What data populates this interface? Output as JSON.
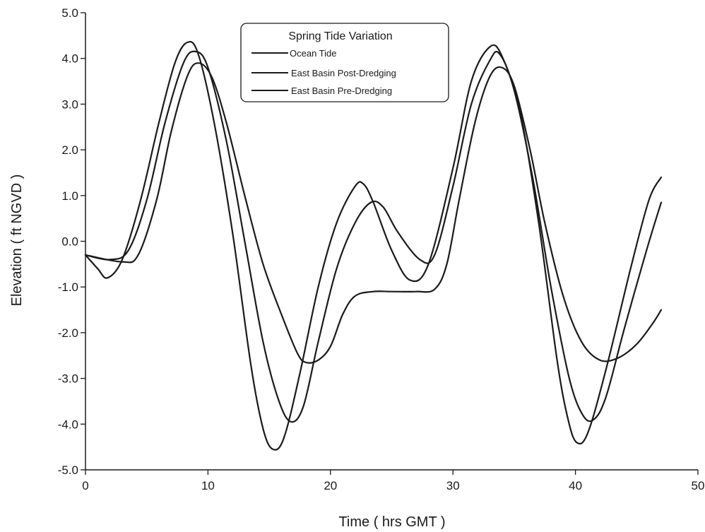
{
  "chart_data": {
    "type": "line",
    "title": "",
    "xlabel": "Time ( hrs GMT )",
    "ylabel": "Elevation ( ft NGVD )",
    "xlim": [
      0,
      50
    ],
    "ylim": [
      -5,
      5
    ],
    "x_ticks": [
      0,
      10,
      20,
      30,
      40,
      50
    ],
    "x_tick_labels": [
      "0",
      "10",
      "20",
      "30",
      "40",
      "50"
    ],
    "y_ticks": [
      5,
      4,
      3,
      2,
      1,
      0,
      -1,
      -2,
      -3,
      -4,
      -5
    ],
    "y_tick_labels": [
      "5.0",
      "4.0",
      "3.0",
      "2.0",
      "1.0",
      "0.0",
      "-1.0",
      "-2.0",
      "-3.0",
      "-4.0",
      "-5.0"
    ],
    "grid": false,
    "legend": {
      "title": "Spring Tide Variation",
      "position": "top-center"
    },
    "series": [
      {
        "name": "Ocean Tide",
        "color": "#1a1a1a",
        "points": [
          [
            0,
            -0.3
          ],
          [
            1,
            -0.6
          ],
          [
            1.8,
            -0.8
          ],
          [
            3,
            -0.4
          ],
          [
            4.5,
            0.9
          ],
          [
            6,
            2.6
          ],
          [
            7.3,
            3.9
          ],
          [
            8.3,
            4.35
          ],
          [
            9.2,
            4.1
          ],
          [
            10.5,
            2.6
          ],
          [
            12,
            0.2
          ],
          [
            13.5,
            -2.7
          ],
          [
            14.5,
            -4.1
          ],
          [
            15.3,
            -4.55
          ],
          [
            16.2,
            -4.3
          ],
          [
            17.5,
            -2.9
          ],
          [
            19,
            -1.0
          ],
          [
            20.5,
            0.4
          ],
          [
            22,
            1.2
          ],
          [
            22.7,
            1.25
          ],
          [
            23.5,
            0.85
          ],
          [
            25,
            -0.2
          ],
          [
            26.5,
            -0.85
          ],
          [
            28,
            -0.5
          ],
          [
            30,
            1.6
          ],
          [
            31.5,
            3.5
          ],
          [
            33,
            4.25
          ],
          [
            34,
            4.05
          ],
          [
            35.5,
            2.8
          ],
          [
            37,
            0.4
          ],
          [
            38.5,
            -2.6
          ],
          [
            39.4,
            -3.9
          ],
          [
            40.1,
            -4.4
          ],
          [
            41,
            -4.2
          ],
          [
            42.5,
            -2.8
          ],
          [
            44.5,
            -0.6
          ],
          [
            46,
            0.9
          ],
          [
            47,
            1.4
          ]
        ]
      },
      {
        "name": "East Basin Post-Dredging",
        "color": "#1a1a1a",
        "points": [
          [
            0,
            -0.3
          ],
          [
            2,
            -0.4
          ],
          [
            3.5,
            -0.2
          ],
          [
            5,
            0.9
          ],
          [
            6.5,
            2.6
          ],
          [
            8,
            3.9
          ],
          [
            9,
            4.15
          ],
          [
            10,
            3.8
          ],
          [
            11.5,
            2.2
          ],
          [
            13,
            0.0
          ],
          [
            14.5,
            -2.2
          ],
          [
            15.8,
            -3.5
          ],
          [
            16.8,
            -3.95
          ],
          [
            17.8,
            -3.6
          ],
          [
            19,
            -2.2
          ],
          [
            20.5,
            -0.6
          ],
          [
            22,
            0.4
          ],
          [
            23.3,
            0.85
          ],
          [
            24.3,
            0.75
          ],
          [
            25.5,
            0.2
          ],
          [
            27.3,
            -0.4
          ],
          [
            28.5,
            -0.3
          ],
          [
            30,
            1.2
          ],
          [
            31.5,
            3.0
          ],
          [
            33,
            3.95
          ],
          [
            33.8,
            4.1
          ],
          [
            35,
            3.3
          ],
          [
            36.5,
            1.4
          ],
          [
            38,
            -1.0
          ],
          [
            39.5,
            -3.0
          ],
          [
            40.6,
            -3.8
          ],
          [
            41.5,
            -3.9
          ],
          [
            42.5,
            -3.4
          ],
          [
            44,
            -1.9
          ],
          [
            45.8,
            -0.2
          ],
          [
            47,
            0.85
          ]
        ]
      },
      {
        "name": "East Basin Pre-Dredging",
        "color": "#1a1a1a",
        "points": [
          [
            0,
            -0.3
          ],
          [
            3,
            -0.45
          ],
          [
            4.3,
            -0.3
          ],
          [
            5.8,
            0.9
          ],
          [
            7,
            2.4
          ],
          [
            8.3,
            3.6
          ],
          [
            9.2,
            3.9
          ],
          [
            10.3,
            3.6
          ],
          [
            11.5,
            2.6
          ],
          [
            13,
            1.0
          ],
          [
            14.5,
            -0.5
          ],
          [
            16,
            -1.6
          ],
          [
            17.3,
            -2.45
          ],
          [
            18,
            -2.65
          ],
          [
            19,
            -2.6
          ],
          [
            20,
            -2.3
          ],
          [
            21,
            -1.6
          ],
          [
            22,
            -1.2
          ],
          [
            23.5,
            -1.1
          ],
          [
            25,
            -1.1
          ],
          [
            27,
            -1.1
          ],
          [
            28.5,
            -1.05
          ],
          [
            29.5,
            -0.5
          ],
          [
            30.5,
            0.9
          ],
          [
            31.8,
            2.6
          ],
          [
            33,
            3.6
          ],
          [
            34,
            3.8
          ],
          [
            35,
            3.4
          ],
          [
            36.3,
            2.0
          ],
          [
            37.5,
            0.4
          ],
          [
            39,
            -1.2
          ],
          [
            40.5,
            -2.2
          ],
          [
            42,
            -2.6
          ],
          [
            43.5,
            -2.55
          ],
          [
            45,
            -2.25
          ],
          [
            46.3,
            -1.8
          ],
          [
            47,
            -1.5
          ]
        ]
      }
    ]
  }
}
